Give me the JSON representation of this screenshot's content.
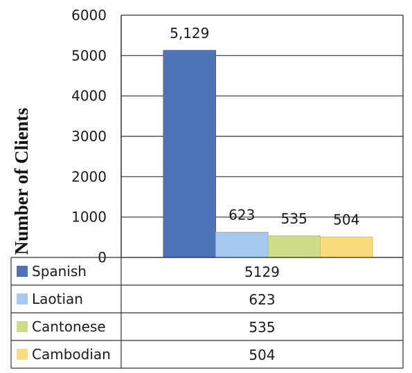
{
  "chart_data": {
    "type": "bar",
    "categories": [
      "Spanish",
      "Laotian",
      "Cantonese",
      "Cambodian"
    ],
    "values": [
      5129,
      623,
      535,
      504
    ],
    "data_labels": [
      "5,129",
      "623",
      "535",
      "504"
    ],
    "table_values": [
      "5129",
      "623",
      "535",
      "504"
    ],
    "ylabel": "Number of Clients",
    "ylim": [
      0,
      6000
    ],
    "yticks": [
      "0",
      "1000",
      "2000",
      "3000",
      "4000",
      "5000",
      "6000"
    ],
    "grid": true,
    "legend": "data-table-below",
    "colors": [
      "#4f73b8",
      "#a6c9ee",
      "#cfdd86",
      "#f9dc7c"
    ]
  }
}
